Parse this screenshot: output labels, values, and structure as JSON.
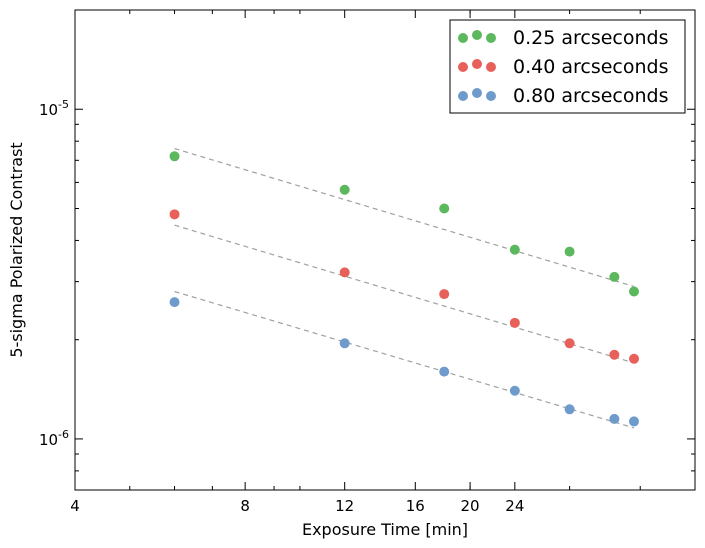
{
  "chart_data": {
    "type": "scatter",
    "title": "",
    "xlabel": "Exposure Time [min]",
    "ylabel": "5-sigma Polarized Contrast",
    "xscale": "log",
    "yscale": "log",
    "xlim": [
      4,
      50
    ],
    "ylim": [
      7e-07,
      2e-05
    ],
    "x_ticks": [
      {
        "value": 4,
        "label": "4"
      },
      {
        "value": 8,
        "label": "8"
      },
      {
        "value": 12,
        "label": "12"
      },
      {
        "value": 16,
        "label": "16"
      },
      {
        "value": 20,
        "label": "20"
      },
      {
        "value": 24,
        "label": "24"
      }
    ],
    "y_ticks": [
      {
        "value": 1e-06,
        "base": "10",
        "exp": "-6"
      },
      {
        "value": 1e-05,
        "base": "10",
        "exp": "-5"
      }
    ],
    "legend_position": "top-right",
    "series": [
      {
        "name": "0.25 arcseconds",
        "color": "#5cb85c",
        "x": [
          6,
          12,
          18,
          24,
          30,
          36,
          39
        ],
        "y": [
          7.2e-06,
          5.7e-06,
          5e-06,
          3.75e-06,
          3.7e-06,
          3.1e-06,
          2.8e-06
        ],
        "fit": {
          "x": [
            6,
            39
          ],
          "y": [
            7.6e-06,
            2.9e-06
          ]
        }
      },
      {
        "name": "0.40 arcseconds",
        "color": "#e8605a",
        "x": [
          6,
          12,
          18,
          24,
          30,
          36,
          39
        ],
        "y": [
          4.8e-06,
          3.2e-06,
          2.75e-06,
          2.25e-06,
          1.95e-06,
          1.8e-06,
          1.75e-06
        ],
        "fit": {
          "x": [
            6,
            39
          ],
          "y": [
            4.45e-06,
            1.7e-06
          ]
        }
      },
      {
        "name": "0.80 arcseconds",
        "color": "#6e9bcb",
        "x": [
          6,
          12,
          18,
          24,
          30,
          36,
          39
        ],
        "y": [
          2.6e-06,
          1.95e-06,
          1.6e-06,
          1.4e-06,
          1.23e-06,
          1.15e-06,
          1.13e-06
        ],
        "fit": {
          "x": [
            6,
            39
          ],
          "y": [
            2.8e-06,
            1.08e-06
          ]
        }
      }
    ]
  }
}
